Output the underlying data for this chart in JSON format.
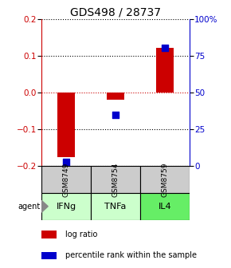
{
  "title": "GDS498 / 28737",
  "samples": [
    "GSM8749",
    "GSM8754",
    "GSM8759"
  ],
  "agents": [
    "IFNg",
    "TNFa",
    "IL4"
  ],
  "agent_colors": [
    "#ccffcc",
    "#ccffcc",
    "#66ee66"
  ],
  "log_ratios": [
    -0.175,
    -0.02,
    0.12
  ],
  "percentile_ranks": [
    3.0,
    35.0,
    80.0
  ],
  "ylim_left": [
    -0.2,
    0.2
  ],
  "ylim_right": [
    0,
    100
  ],
  "left_yticks": [
    -0.2,
    -0.1,
    0.0,
    0.1,
    0.2
  ],
  "right_yticks": [
    0,
    25,
    50,
    75,
    100
  ],
  "right_yticklabels": [
    "0",
    "25",
    "50",
    "75",
    "100%"
  ],
  "bar_color": "#cc0000",
  "dot_color": "#0000cc",
  "zero_line_color": "#cc0000",
  "grid_color": "#000000",
  "sample_box_color": "#cccccc",
  "agent_box_edge": "#000000",
  "background_color": "#ffffff",
  "bar_width": 0.35,
  "dot_size": 40,
  "title_fontsize": 10,
  "tick_fontsize": 7.5,
  "sample_fontsize": 6.5,
  "agent_fontsize": 8,
  "legend_fontsize": 7
}
